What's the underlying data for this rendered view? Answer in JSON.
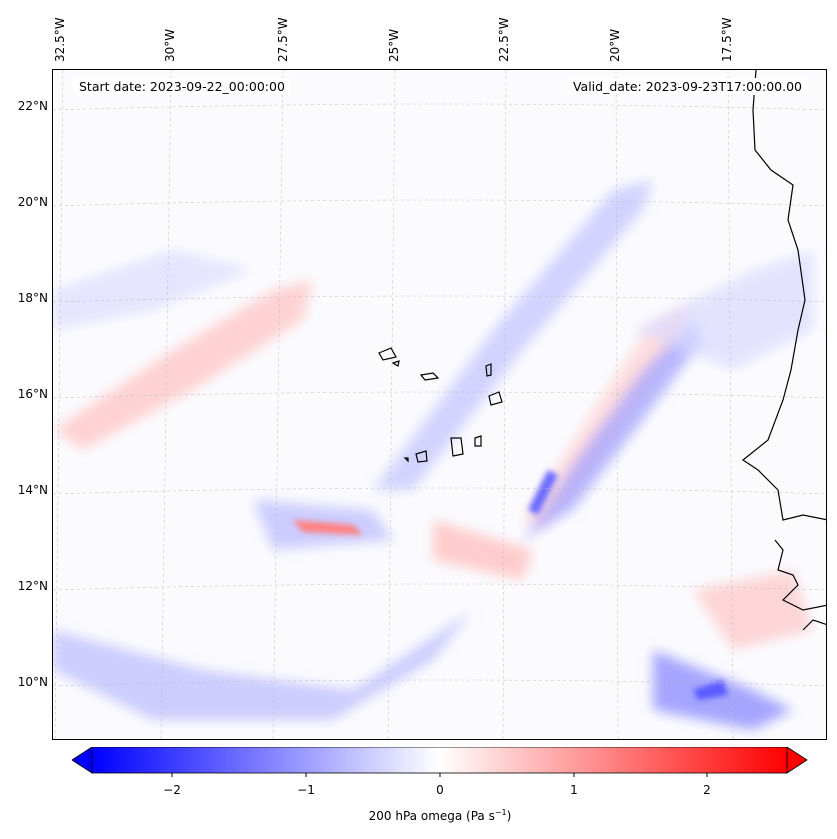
{
  "header": {
    "start_date": "Start date: 2023-09-22_00:00:00",
    "valid_date": "Valid_date: 2023-09-23T17:00:00.00"
  },
  "lon_labels": [
    "32.5°W",
    "30°W",
    "27.5°W",
    "25°W",
    "22.5°W",
    "20°W",
    "17.5°W"
  ],
  "lat_labels": [
    "22°N",
    "20°N",
    "18°N",
    "16°N",
    "14°N",
    "12°N",
    "10°N"
  ],
  "colorbar": {
    "label": "200 hPa omega (Pa s",
    "label_sup": "−1",
    "label_end": ")",
    "ticks": [
      "−2",
      "−1",
      "0",
      "1",
      "2"
    ],
    "tick_values": [
      -2,
      -1,
      0,
      1,
      2
    ],
    "range": [
      -2.6,
      2.6
    ],
    "colors": {
      "min": "#0000ff",
      "mid": "#ffffff",
      "max": "#ff0000"
    }
  }
}
